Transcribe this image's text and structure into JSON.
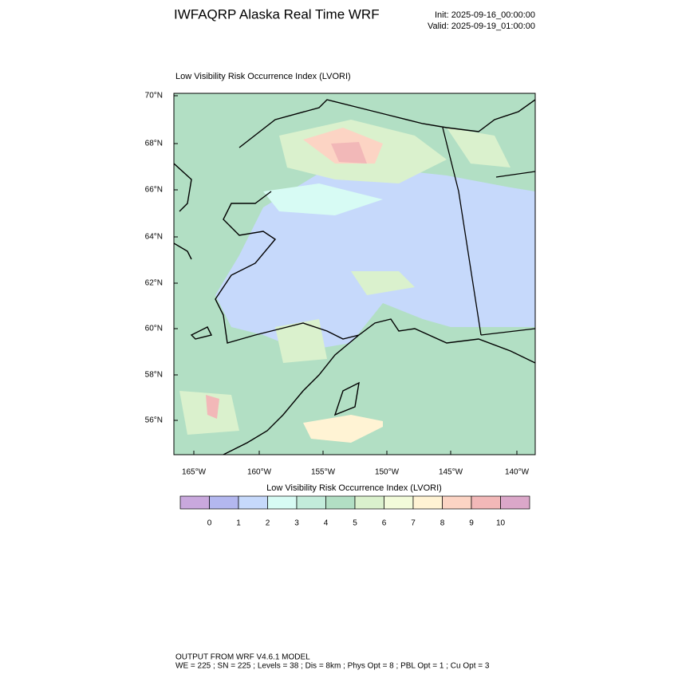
{
  "header": {
    "title": "IWFAQRP Alaska Real Time WRF",
    "init": "Init: 2025-09-16_00:00:00",
    "valid": "Valid: 2025-09-19_01:00:00"
  },
  "map": {
    "title": "Low Visibility Risk Occurrence Index   (LVORI)",
    "lat_labels": [
      "70°N",
      "68°N",
      "66°N",
      "64°N",
      "62°N",
      "60°N",
      "58°N",
      "56°N"
    ],
    "lon_labels": [
      "165°W",
      "160°W",
      "155°W",
      "150°W",
      "145°W",
      "140°W"
    ]
  },
  "colorbar": {
    "title": "Low Visibility Risk Occurrence Index  (LVORI)",
    "colors": [
      "#c9a8dd",
      "#b3b7ef",
      "#c6d9fb",
      "#d7fbf4",
      "#c3ecdb",
      "#b2dfc4",
      "#daf1cd",
      "#f2fbda",
      "#fff3d4",
      "#fcd4c4",
      "#f2b8b8",
      "#dba7c9"
    ],
    "ticks": [
      0,
      1,
      2,
      3,
      4,
      5,
      6,
      7,
      8,
      9,
      10
    ]
  },
  "footer": {
    "line1": "OUTPUT FROM WRF V4.6.1 MODEL",
    "line2": "WE = 225 ; SN = 225 ; Levels = 38 ; Dis = 8km ; Phys Opt = 8 ; PBL Opt = 1 ; Cu Opt = 3"
  }
}
